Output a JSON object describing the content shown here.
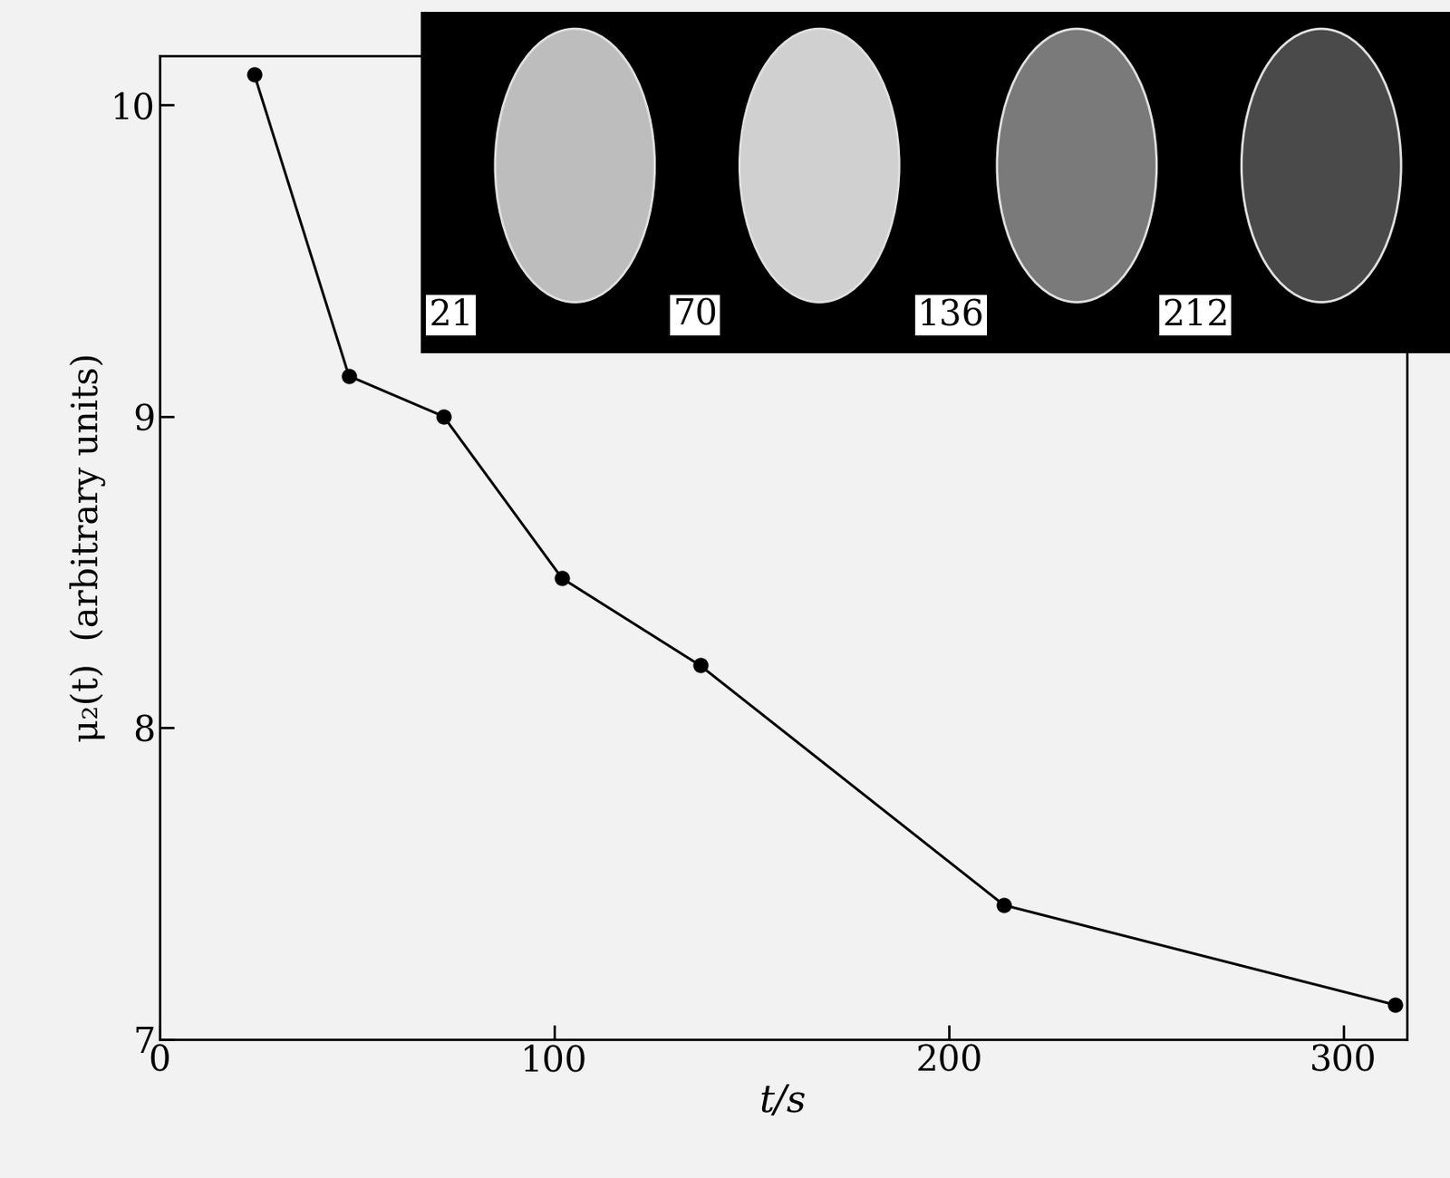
{
  "chart_data": {
    "type": "line",
    "x_label": "t/s",
    "y_label": "μ₂(t)  (arbitrary units)",
    "x": [
      24,
      48,
      72,
      102,
      137,
      214,
      313
    ],
    "values": [
      10.1,
      9.13,
      9.0,
      8.48,
      8.2,
      7.43,
      7.11
    ],
    "xlim": [
      0,
      316
    ],
    "ylim": [
      7,
      10.16
    ],
    "xticks": [
      0,
      100,
      200,
      300
    ],
    "yticks": [
      7,
      8,
      9,
      10
    ],
    "color": "#000000",
    "marker": "o",
    "line_style": "solid",
    "grid": false,
    "annotations": [
      "21",
      "70",
      "136",
      "212"
    ]
  }
}
